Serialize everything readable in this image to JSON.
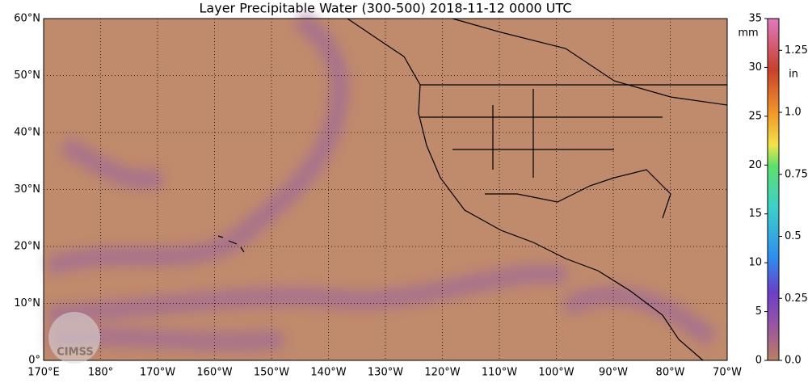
{
  "title": "Layer Precipitable Water (300-500)  2018-11-12 0000 UTC",
  "lat_labels": [
    "0°",
    "10°N",
    "20°N",
    "30°N",
    "40°N",
    "50°N",
    "60°N"
  ],
  "lon_labels": [
    "170°E",
    "180°",
    "170°W",
    "160°W",
    "150°W",
    "140°W",
    "130°W",
    "120°W",
    "110°W",
    "100°W",
    "90°W",
    "80°W",
    "70°W"
  ],
  "colorbar": {
    "range": [
      0,
      35
    ],
    "mm_unit": "mm",
    "in_unit": "in",
    "mm_ticks": [
      0,
      5,
      10,
      15,
      20,
      25,
      30,
      35
    ],
    "in_ticks": [
      {
        "value": 0,
        "label": "0.0"
      },
      0.25,
      0.5,
      0.75,
      {
        "value": 1,
        "label": "1.0"
      },
      1.25
    ]
  },
  "logo": "CIMSS"
}
